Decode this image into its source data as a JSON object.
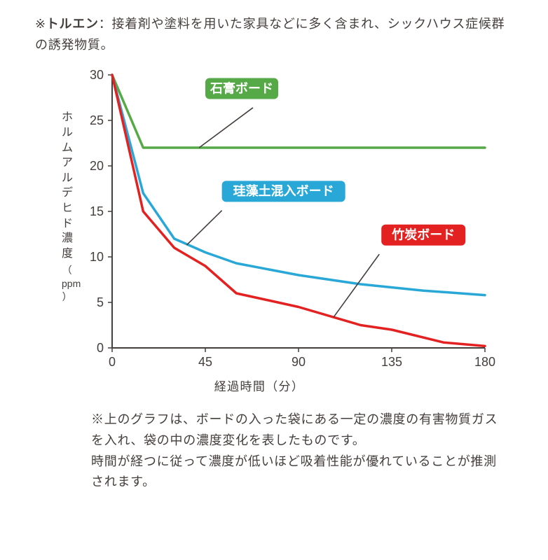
{
  "top_note": {
    "prefix": "※",
    "term": "トルエン",
    "sep": "：",
    "body": "接着剤や塗料を用いた家具などに多く含まれ、シックハウス症候群の誘発物質。"
  },
  "chart": {
    "type": "line",
    "background_color": "#ffffff",
    "axis_color": "#443e3c",
    "axis_width": 2,
    "xlabel": "経過時間（分）",
    "ylabel_chars": [
      "ホ",
      "ル",
      "ム",
      "ア",
      "ル",
      "デ",
      "ヒ",
      "ド",
      "濃",
      "度"
    ],
    "ylabel_unit_open": "（",
    "ylabel_unit": "ppm",
    "ylabel_unit_close": "）",
    "xlim": [
      0,
      180
    ],
    "ylim": [
      0,
      30
    ],
    "xticks": [
      0,
      45,
      90,
      135,
      180
    ],
    "yticks": [
      0,
      5,
      10,
      15,
      20,
      25,
      30
    ],
    "tick_fontsize": 18,
    "label_fontsize": 17,
    "line_width": 3.5,
    "callout_color": "#443e3c",
    "callout_width": 1.6,
    "series": [
      {
        "name": "石膏ボード",
        "color": "#55a946",
        "label_bg": "#55a946",
        "data": [
          [
            0,
            30
          ],
          [
            15,
            22
          ],
          [
            180,
            22
          ]
        ],
        "label_box": {
          "x": 45,
          "y": 28.5,
          "w": 104,
          "h": 30
        },
        "callout_from": {
          "x": 68,
          "y": 26.4
        },
        "callout_to": {
          "x": 42,
          "y": 22
        }
      },
      {
        "name": "珪藻土混入ボード",
        "color": "#29a8d7",
        "label_bg": "#29a8d7",
        "data": [
          [
            0,
            30
          ],
          [
            15,
            17
          ],
          [
            30,
            12
          ],
          [
            45,
            10.5
          ],
          [
            60,
            9.3
          ],
          [
            90,
            8
          ],
          [
            120,
            7
          ],
          [
            150,
            6.3
          ],
          [
            180,
            5.8
          ]
        ],
        "label_box": {
          "x": 53,
          "y": 17.2,
          "w": 176,
          "h": 30
        },
        "callout_from": {
          "x": 53,
          "y": 15.1
        },
        "callout_to": {
          "x": 36,
          "y": 11.3
        }
      },
      {
        "name": "竹炭ボード",
        "color": "#e32121",
        "label_bg": "#e32121",
        "data": [
          [
            0,
            30
          ],
          [
            15,
            15
          ],
          [
            30,
            11
          ],
          [
            45,
            9
          ],
          [
            60,
            6
          ],
          [
            90,
            4.5
          ],
          [
            120,
            2.5
          ],
          [
            135,
            2
          ],
          [
            160,
            0.6
          ],
          [
            180,
            0.2
          ]
        ],
        "label_box": {
          "x": 130,
          "y": 12.4,
          "w": 120,
          "h": 30
        },
        "callout_from": {
          "x": 129,
          "y": 10.3
        },
        "callout_to": {
          "x": 107,
          "y": 3.4
        }
      }
    ]
  },
  "bottom_note": {
    "p1": "※上のグラフは、ボードの入った袋にある一定の濃度の有害物質ガスを入れ、袋の中の濃度変化を表したものです。",
    "p2": "時間が経つに従って濃度が低いほど吸着性能が優れていることが推測されます。"
  }
}
